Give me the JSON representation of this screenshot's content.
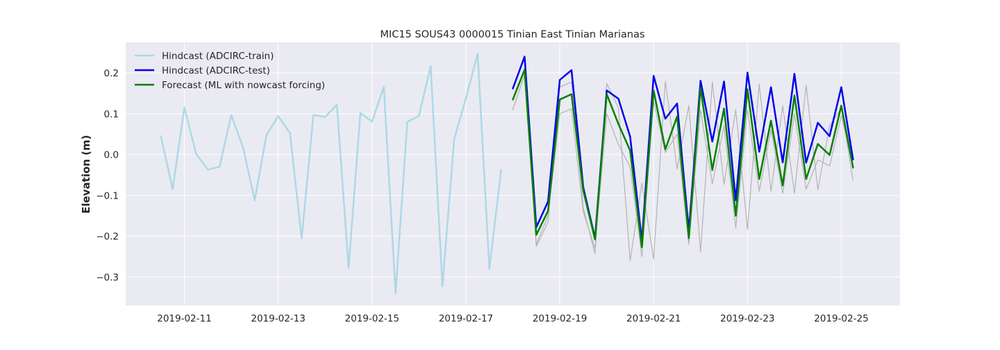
{
  "chart_data": {
    "type": "line",
    "title": "MIC15 SOUS43 0000015 Tinian East Tinian Marianas",
    "xlabel": "",
    "ylabel": "Elevation (m)",
    "xlim": [
      "2019-02-09 18:00",
      "2019-02-26 06:00"
    ],
    "ylim": [
      -0.37,
      0.275
    ],
    "x_tick_labels": [
      "2019-02-11",
      "2019-02-13",
      "2019-02-15",
      "2019-02-17",
      "2019-02-19",
      "2019-02-21",
      "2019-02-23",
      "2019-02-25"
    ],
    "y_tick_labels": [
      "−0.3",
      "−0.2",
      "−0.1",
      "0.0",
      "0.1",
      "0.2"
    ],
    "y_tick_values": [
      -0.3,
      -0.2,
      -0.1,
      0.0,
      0.1,
      0.2
    ],
    "grid": true,
    "legend_position": "upper-left",
    "background_color": "#eaeaf2",
    "series": [
      {
        "name": "Hindcast (ADCIRC-train)",
        "color": "#add8e6",
        "x": [
          "2019-02-10 12:00",
          "2019-02-10 18:00",
          "2019-02-11 00:00",
          "2019-02-11 06:00",
          "2019-02-11 12:00",
          "2019-02-11 18:00",
          "2019-02-12 00:00",
          "2019-02-12 06:00",
          "2019-02-12 12:00",
          "2019-02-12 18:00",
          "2019-02-13 00:00",
          "2019-02-13 06:00",
          "2019-02-13 12:00",
          "2019-02-13 18:00",
          "2019-02-14 00:00",
          "2019-02-14 06:00",
          "2019-02-14 12:00",
          "2019-02-14 18:00",
          "2019-02-15 00:00",
          "2019-02-15 06:00",
          "2019-02-15 12:00",
          "2019-02-15 18:00",
          "2019-02-16 00:00",
          "2019-02-16 06:00",
          "2019-02-16 12:00",
          "2019-02-16 18:00",
          "2019-02-17 00:00",
          "2019-02-17 06:00",
          "2019-02-17 12:00",
          "2019-02-17 18:00"
        ],
        "values": [
          0.045,
          -0.085,
          0.115,
          0.002,
          -0.037,
          -0.03,
          0.097,
          0.018,
          -0.112,
          0.048,
          0.094,
          0.053,
          -0.205,
          0.097,
          0.092,
          0.122,
          -0.278,
          0.102,
          0.081,
          0.166,
          -0.34,
          0.08,
          0.095,
          0.217,
          -0.323,
          0.038,
          0.138,
          0.247,
          -0.28,
          -0.038
        ]
      },
      {
        "name": "",
        "color": "#b3b3b3",
        "x": [
          "2019-02-18 00:00",
          "2019-02-18 06:00",
          "2019-02-18 12:00",
          "2019-02-18 18:00",
          "2019-02-19 00:00",
          "2019-02-19 06:00",
          "2019-02-19 12:00",
          "2019-02-19 18:00",
          "2019-02-20 00:00",
          "2019-02-20 06:00",
          "2019-02-20 12:00",
          "2019-02-20 18:00",
          "2019-02-21 00:00",
          "2019-02-21 06:00",
          "2019-02-21 12:00",
          "2019-02-21 18:00",
          "2019-02-22 00:00",
          "2019-02-22 06:00",
          "2019-02-22 12:00",
          "2019-02-22 18:00",
          "2019-02-23 00:00",
          "2019-02-23 06:00",
          "2019-02-23 12:00",
          "2019-02-23 18:00",
          "2019-02-24 00:00",
          "2019-02-24 06:00",
          "2019-02-24 12:00",
          "2019-02-24 18:00",
          "2019-02-25 00:00",
          "2019-02-25 06:00"
        ],
        "values": [
          0.111,
          0.196,
          -0.225,
          -0.165,
          0.165,
          0.178,
          -0.13,
          -0.243,
          0.174,
          0.115,
          -0.26,
          -0.07,
          -0.256,
          0.18,
          -0.035,
          0.12,
          -0.238,
          0.178,
          -0.073,
          0.11,
          -0.183,
          0.173,
          -0.09,
          0.12,
          -0.095,
          0.17,
          -0.086,
          0.07,
          0.114,
          -0.063
        ]
      },
      {
        "name": "",
        "color": "#b3b3b3",
        "x": [
          "2019-02-18 00:00",
          "2019-02-18 06:00",
          "2019-02-18 12:00",
          "2019-02-18 18:00",
          "2019-02-19 00:00",
          "2019-02-19 06:00",
          "2019-02-19 12:00",
          "2019-02-19 18:00",
          "2019-02-20 00:00",
          "2019-02-20 06:00",
          "2019-02-20 12:00",
          "2019-02-20 18:00",
          "2019-02-21 00:00",
          "2019-02-21 06:00",
          "2019-02-21 12:00",
          "2019-02-21 18:00",
          "2019-02-22 00:00",
          "2019-02-22 06:00",
          "2019-02-22 12:00",
          "2019-02-22 18:00",
          "2019-02-23 00:00",
          "2019-02-23 06:00",
          "2019-02-23 12:00",
          "2019-02-23 18:00",
          "2019-02-24 00:00",
          "2019-02-24 06:00",
          "2019-02-24 12:00",
          "2019-02-24 18:00",
          "2019-02-25 00:00",
          "2019-02-25 06:00"
        ],
        "values": [
          0.11,
          0.195,
          -0.22,
          -0.15,
          0.1,
          0.112,
          -0.14,
          -0.23,
          0.1,
          0.025,
          -0.03,
          -0.25,
          0.13,
          0.005,
          0.05,
          -0.22,
          0.11,
          -0.072,
          0.07,
          -0.18,
          0.11,
          -0.09,
          0.06,
          -0.095,
          0.1,
          -0.085,
          -0.013,
          -0.028,
          0.095,
          -0.03
        ]
      },
      {
        "name": "Hindcast (ADCIRC-test)",
        "color": "#0000ee",
        "x": [
          "2019-02-18 00:00",
          "2019-02-18 06:00",
          "2019-02-18 12:00",
          "2019-02-18 18:00",
          "2019-02-19 00:00",
          "2019-02-19 06:00",
          "2019-02-19 12:00",
          "2019-02-19 18:00",
          "2019-02-20 00:00",
          "2019-02-20 06:00",
          "2019-02-20 12:00",
          "2019-02-20 18:00",
          "2019-02-21 00:00",
          "2019-02-21 06:00",
          "2019-02-21 12:00",
          "2019-02-21 18:00",
          "2019-02-22 00:00",
          "2019-02-22 06:00",
          "2019-02-22 12:00",
          "2019-02-22 18:00",
          "2019-02-23 00:00",
          "2019-02-23 06:00",
          "2019-02-23 12:00",
          "2019-02-23 18:00",
          "2019-02-24 00:00",
          "2019-02-24 06:00",
          "2019-02-24 12:00",
          "2019-02-24 18:00",
          "2019-02-25 00:00",
          "2019-02-25 06:00"
        ],
        "values": [
          0.162,
          0.24,
          -0.178,
          -0.115,
          0.183,
          0.207,
          -0.08,
          -0.205,
          0.157,
          0.137,
          0.044,
          -0.212,
          0.193,
          0.088,
          0.125,
          -0.187,
          0.181,
          0.032,
          0.179,
          -0.112,
          0.201,
          0.007,
          0.165,
          -0.019,
          0.198,
          -0.02,
          0.078,
          0.045,
          0.165,
          -0.012
        ]
      },
      {
        "name": "Forecast (ML with nowcast forcing)",
        "color": "#008000",
        "x": [
          "2019-02-18 00:00",
          "2019-02-18 06:00",
          "2019-02-18 12:00",
          "2019-02-18 18:00",
          "2019-02-19 00:00",
          "2019-02-19 06:00",
          "2019-02-19 12:00",
          "2019-02-19 18:00",
          "2019-02-20 00:00",
          "2019-02-20 06:00",
          "2019-02-20 12:00",
          "2019-02-20 18:00",
          "2019-02-21 00:00",
          "2019-02-21 06:00",
          "2019-02-21 12:00",
          "2019-02-21 18:00",
          "2019-02-22 00:00",
          "2019-02-22 06:00",
          "2019-02-22 12:00",
          "2019-02-22 18:00",
          "2019-02-23 00:00",
          "2019-02-23 06:00",
          "2019-02-23 12:00",
          "2019-02-23 18:00",
          "2019-02-24 00:00",
          "2019-02-24 06:00",
          "2019-02-24 12:00",
          "2019-02-24 18:00",
          "2019-02-25 00:00",
          "2019-02-25 06:00"
        ],
        "values": [
          0.135,
          0.208,
          -0.197,
          -0.138,
          0.135,
          0.148,
          -0.088,
          -0.208,
          0.148,
          0.075,
          0.01,
          -0.227,
          0.157,
          0.013,
          0.093,
          -0.205,
          0.164,
          -0.038,
          0.113,
          -0.15,
          0.16,
          -0.06,
          0.083,
          -0.076,
          0.145,
          -0.06,
          0.026,
          -0.001,
          0.12,
          -0.032
        ]
      }
    ]
  }
}
